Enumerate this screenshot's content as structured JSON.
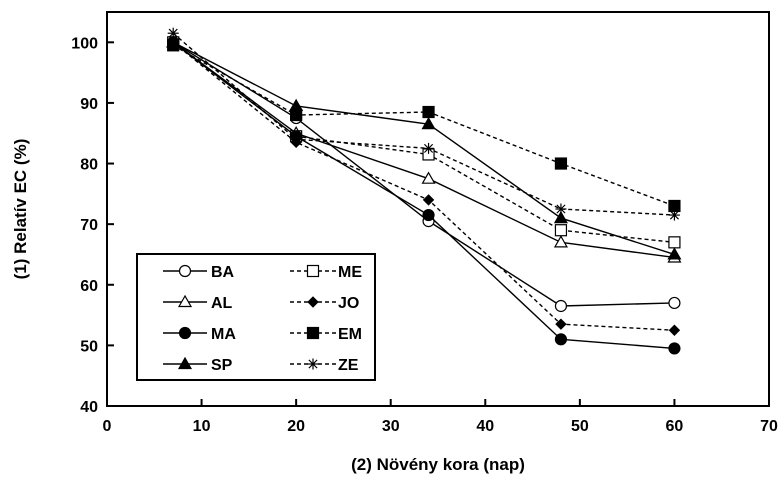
{
  "chart_data": {
    "type": "line",
    "xlabel": "(2) Növény kora (nap)",
    "ylabel": "(1) Relatív EC (%)",
    "xlim": [
      0,
      70
    ],
    "ylim": [
      40,
      105
    ],
    "xticks": [
      0,
      10,
      20,
      30,
      40,
      50,
      60,
      70
    ],
    "yticks": [
      40,
      50,
      60,
      70,
      80,
      90,
      100
    ],
    "grid": false,
    "legend_position": "bottom-left",
    "x": [
      7,
      20,
      34,
      48,
      60
    ],
    "series": [
      {
        "name": "BA",
        "values": [
          100,
          87.5,
          70.5,
          56.5,
          57
        ],
        "marker": "circle-open",
        "line": "solid"
      },
      {
        "name": "ME",
        "values": [
          100,
          84.5,
          81.5,
          69,
          67
        ],
        "marker": "square-open",
        "line": "dashed"
      },
      {
        "name": "AL",
        "values": [
          100,
          85,
          77.5,
          67,
          64.5
        ],
        "marker": "triangle-open",
        "line": "solid"
      },
      {
        "name": "JO",
        "values": [
          100,
          83.5,
          74,
          53.5,
          52.5
        ],
        "marker": "diamond-filled",
        "line": "dashed"
      },
      {
        "name": "MA",
        "values": [
          100,
          84.5,
          71.5,
          51,
          49.5
        ],
        "marker": "circle-filled",
        "line": "solid"
      },
      {
        "name": "EM",
        "values": [
          99.5,
          88,
          88.5,
          80,
          73
        ],
        "marker": "square-filled",
        "line": "dashed"
      },
      {
        "name": "SP",
        "values": [
          100,
          89.5,
          86.5,
          71,
          65
        ],
        "marker": "triangle-filled",
        "line": "solid"
      },
      {
        "name": "ZE",
        "values": [
          101.5,
          84,
          82.5,
          72.5,
          71.5
        ],
        "marker": "asterisk",
        "line": "dashed"
      }
    ]
  }
}
